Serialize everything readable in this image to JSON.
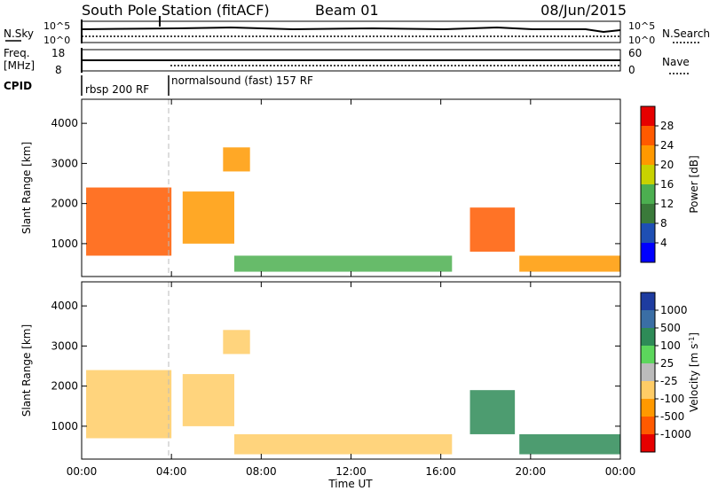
{
  "header": {
    "station": "South Pole Station (fitACF)",
    "beam": "Beam 01",
    "date": "08/Jun/2015"
  },
  "strip_panels": {
    "sky_label": "N.Sky",
    "sky_ticks": [
      "10^5",
      "10^0"
    ],
    "search_label": "N.Search",
    "search_ticks": [
      "10^5",
      "10^0"
    ],
    "freq_label": "Freq.",
    "freq_unit": "[MHz]",
    "freq_ticks": [
      "18",
      "8"
    ],
    "nave_label": "Nave",
    "nave_ticks": [
      "60",
      "0"
    ],
    "cpid_label": "CPID",
    "cpid_segments": [
      {
        "label": "rbsp 200 RF",
        "start_h": 0,
        "end_h": 4
      },
      {
        "label": "normalsound (fast) 157 RF",
        "start_h": 4,
        "end_h": 24
      }
    ]
  },
  "chart_data": [
    {
      "type": "heatmap",
      "name": "power",
      "ylabel": "Slant Range [km]",
      "xlabel": "Time UT",
      "xlim": [
        0,
        24
      ],
      "ylim": [
        180,
        4600
      ],
      "y_ticks": [
        "1000",
        "2000",
        "3000",
        "4000"
      ],
      "x_ticks": [
        "00:00",
        "04:00",
        "08:00",
        "12:00",
        "16:00",
        "20:00",
        "00:00"
      ],
      "colorbar": {
        "label": "Power [dB]",
        "ticks": [
          "4",
          "8",
          "12",
          "16",
          "20",
          "24",
          "28"
        ],
        "colors": [
          "#0000ff",
          "#1e4fb4",
          "#3a7a3a",
          "#4caf50",
          "#c8d200",
          "#ff9900",
          "#ff5a00",
          "#e60000"
        ]
      },
      "echo_regions": [
        {
          "t0": 0.2,
          "t1": 4.0,
          "r0": 700,
          "r1": 2400,
          "level": 26
        },
        {
          "t0": 4.5,
          "t1": 6.8,
          "r0": 1000,
          "r1": 2300,
          "level": 20
        },
        {
          "t0": 6.3,
          "t1": 7.5,
          "r0": 2800,
          "r1": 3400,
          "level": 20
        },
        {
          "t0": 6.8,
          "t1": 16.5,
          "r0": 300,
          "r1": 700,
          "level": 12
        },
        {
          "t0": 17.3,
          "t1": 19.3,
          "r0": 800,
          "r1": 1900,
          "level": 24
        },
        {
          "t0": 19.5,
          "t1": 24.0,
          "r0": 300,
          "r1": 700,
          "level": 20
        }
      ]
    },
    {
      "type": "heatmap",
      "name": "velocity",
      "ylabel": "Slant Range [km]",
      "xlabel": "Time UT",
      "xlim": [
        0,
        24
      ],
      "ylim": [
        180,
        4600
      ],
      "y_ticks": [
        "1000",
        "2000",
        "3000",
        "4000"
      ],
      "x_ticks": [
        "00:00",
        "04:00",
        "08:00",
        "12:00",
        "16:00",
        "20:00",
        "00:00"
      ],
      "colorbar": {
        "label": "Velocity [m s",
        "label_sup": "-1",
        "label_close": "]",
        "ticks": [
          "-1000",
          "-500",
          "-100",
          "-25",
          "25",
          "100",
          "500",
          "1000"
        ],
        "colors": [
          "#e60000",
          "#ff5a00",
          "#ff9900",
          "#ffcc66",
          "#bbbbbb",
          "#5cd65c",
          "#2e8b57",
          "#3a6ea5",
          "#1e3ca0"
        ]
      },
      "echo_regions": [
        {
          "t0": 0.2,
          "t1": 4.0,
          "r0": 700,
          "r1": 2400,
          "level": -100
        },
        {
          "t0": 4.5,
          "t1": 6.8,
          "r0": 1000,
          "r1": 2300,
          "level": -100
        },
        {
          "t0": 6.3,
          "t1": 7.5,
          "r0": 2800,
          "r1": 3400,
          "level": -100
        },
        {
          "t0": 6.8,
          "t1": 16.5,
          "r0": 300,
          "r1": 800,
          "level": -100
        },
        {
          "t0": 17.3,
          "t1": 19.3,
          "r0": 800,
          "r1": 1900,
          "level": 100
        },
        {
          "t0": 19.5,
          "t1": 24.0,
          "r0": 300,
          "r1": 800,
          "level": 100
        }
      ]
    }
  ],
  "time_axis": {
    "ticks": [
      "00:00",
      "04:00",
      "08:00",
      "12:00",
      "16:00",
      "20:00",
      "00:00"
    ],
    "label": "Time UT"
  }
}
